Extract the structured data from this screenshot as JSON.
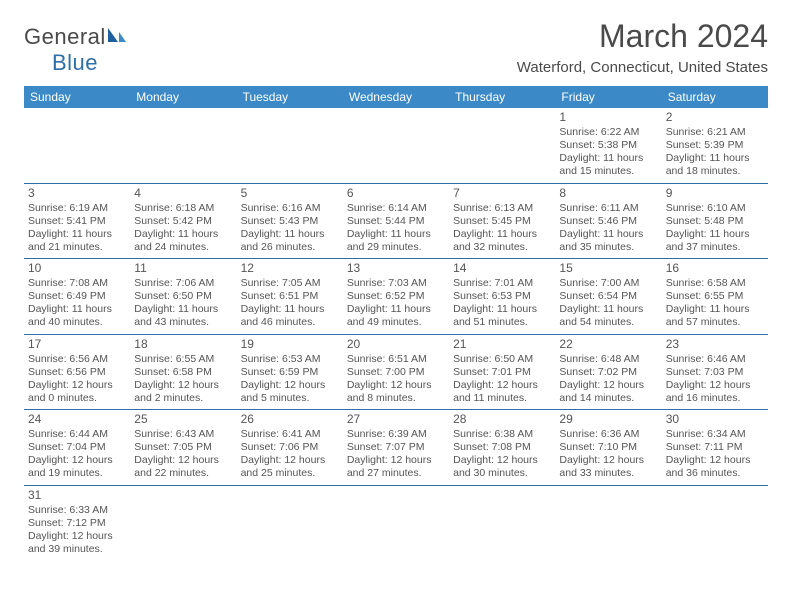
{
  "logo": {
    "text1": "General",
    "text2": "Blue"
  },
  "title": "March 2024",
  "location": "Waterford, Connecticut, United States",
  "colors": {
    "header_bg": "#3b89c6",
    "header_text": "#ffffff",
    "border": "#2f6fa7",
    "text": "#555555",
    "title": "#4a4a4a"
  },
  "dayHeaders": [
    "Sunday",
    "Monday",
    "Tuesday",
    "Wednesday",
    "Thursday",
    "Friday",
    "Saturday"
  ],
  "weeks": [
    [
      null,
      null,
      null,
      null,
      null,
      {
        "n": "1",
        "sr": "Sunrise: 6:22 AM",
        "ss": "Sunset: 5:38 PM",
        "dl": "Daylight: 11 hours and 15 minutes."
      },
      {
        "n": "2",
        "sr": "Sunrise: 6:21 AM",
        "ss": "Sunset: 5:39 PM",
        "dl": "Daylight: 11 hours and 18 minutes."
      }
    ],
    [
      {
        "n": "3",
        "sr": "Sunrise: 6:19 AM",
        "ss": "Sunset: 5:41 PM",
        "dl": "Daylight: 11 hours and 21 minutes."
      },
      {
        "n": "4",
        "sr": "Sunrise: 6:18 AM",
        "ss": "Sunset: 5:42 PM",
        "dl": "Daylight: 11 hours and 24 minutes."
      },
      {
        "n": "5",
        "sr": "Sunrise: 6:16 AM",
        "ss": "Sunset: 5:43 PM",
        "dl": "Daylight: 11 hours and 26 minutes."
      },
      {
        "n": "6",
        "sr": "Sunrise: 6:14 AM",
        "ss": "Sunset: 5:44 PM",
        "dl": "Daylight: 11 hours and 29 minutes."
      },
      {
        "n": "7",
        "sr": "Sunrise: 6:13 AM",
        "ss": "Sunset: 5:45 PM",
        "dl": "Daylight: 11 hours and 32 minutes."
      },
      {
        "n": "8",
        "sr": "Sunrise: 6:11 AM",
        "ss": "Sunset: 5:46 PM",
        "dl": "Daylight: 11 hours and 35 minutes."
      },
      {
        "n": "9",
        "sr": "Sunrise: 6:10 AM",
        "ss": "Sunset: 5:48 PM",
        "dl": "Daylight: 11 hours and 37 minutes."
      }
    ],
    [
      {
        "n": "10",
        "sr": "Sunrise: 7:08 AM",
        "ss": "Sunset: 6:49 PM",
        "dl": "Daylight: 11 hours and 40 minutes."
      },
      {
        "n": "11",
        "sr": "Sunrise: 7:06 AM",
        "ss": "Sunset: 6:50 PM",
        "dl": "Daylight: 11 hours and 43 minutes."
      },
      {
        "n": "12",
        "sr": "Sunrise: 7:05 AM",
        "ss": "Sunset: 6:51 PM",
        "dl": "Daylight: 11 hours and 46 minutes."
      },
      {
        "n": "13",
        "sr": "Sunrise: 7:03 AM",
        "ss": "Sunset: 6:52 PM",
        "dl": "Daylight: 11 hours and 49 minutes."
      },
      {
        "n": "14",
        "sr": "Sunrise: 7:01 AM",
        "ss": "Sunset: 6:53 PM",
        "dl": "Daylight: 11 hours and 51 minutes."
      },
      {
        "n": "15",
        "sr": "Sunrise: 7:00 AM",
        "ss": "Sunset: 6:54 PM",
        "dl": "Daylight: 11 hours and 54 minutes."
      },
      {
        "n": "16",
        "sr": "Sunrise: 6:58 AM",
        "ss": "Sunset: 6:55 PM",
        "dl": "Daylight: 11 hours and 57 minutes."
      }
    ],
    [
      {
        "n": "17",
        "sr": "Sunrise: 6:56 AM",
        "ss": "Sunset: 6:56 PM",
        "dl": "Daylight: 12 hours and 0 minutes."
      },
      {
        "n": "18",
        "sr": "Sunrise: 6:55 AM",
        "ss": "Sunset: 6:58 PM",
        "dl": "Daylight: 12 hours and 2 minutes."
      },
      {
        "n": "19",
        "sr": "Sunrise: 6:53 AM",
        "ss": "Sunset: 6:59 PM",
        "dl": "Daylight: 12 hours and 5 minutes."
      },
      {
        "n": "20",
        "sr": "Sunrise: 6:51 AM",
        "ss": "Sunset: 7:00 PM",
        "dl": "Daylight: 12 hours and 8 minutes."
      },
      {
        "n": "21",
        "sr": "Sunrise: 6:50 AM",
        "ss": "Sunset: 7:01 PM",
        "dl": "Daylight: 12 hours and 11 minutes."
      },
      {
        "n": "22",
        "sr": "Sunrise: 6:48 AM",
        "ss": "Sunset: 7:02 PM",
        "dl": "Daylight: 12 hours and 14 minutes."
      },
      {
        "n": "23",
        "sr": "Sunrise: 6:46 AM",
        "ss": "Sunset: 7:03 PM",
        "dl": "Daylight: 12 hours and 16 minutes."
      }
    ],
    [
      {
        "n": "24",
        "sr": "Sunrise: 6:44 AM",
        "ss": "Sunset: 7:04 PM",
        "dl": "Daylight: 12 hours and 19 minutes."
      },
      {
        "n": "25",
        "sr": "Sunrise: 6:43 AM",
        "ss": "Sunset: 7:05 PM",
        "dl": "Daylight: 12 hours and 22 minutes."
      },
      {
        "n": "26",
        "sr": "Sunrise: 6:41 AM",
        "ss": "Sunset: 7:06 PM",
        "dl": "Daylight: 12 hours and 25 minutes."
      },
      {
        "n": "27",
        "sr": "Sunrise: 6:39 AM",
        "ss": "Sunset: 7:07 PM",
        "dl": "Daylight: 12 hours and 27 minutes."
      },
      {
        "n": "28",
        "sr": "Sunrise: 6:38 AM",
        "ss": "Sunset: 7:08 PM",
        "dl": "Daylight: 12 hours and 30 minutes."
      },
      {
        "n": "29",
        "sr": "Sunrise: 6:36 AM",
        "ss": "Sunset: 7:10 PM",
        "dl": "Daylight: 12 hours and 33 minutes."
      },
      {
        "n": "30",
        "sr": "Sunrise: 6:34 AM",
        "ss": "Sunset: 7:11 PM",
        "dl": "Daylight: 12 hours and 36 minutes."
      }
    ],
    [
      {
        "n": "31",
        "sr": "Sunrise: 6:33 AM",
        "ss": "Sunset: 7:12 PM",
        "dl": "Daylight: 12 hours and 39 minutes."
      },
      null,
      null,
      null,
      null,
      null,
      null
    ]
  ]
}
